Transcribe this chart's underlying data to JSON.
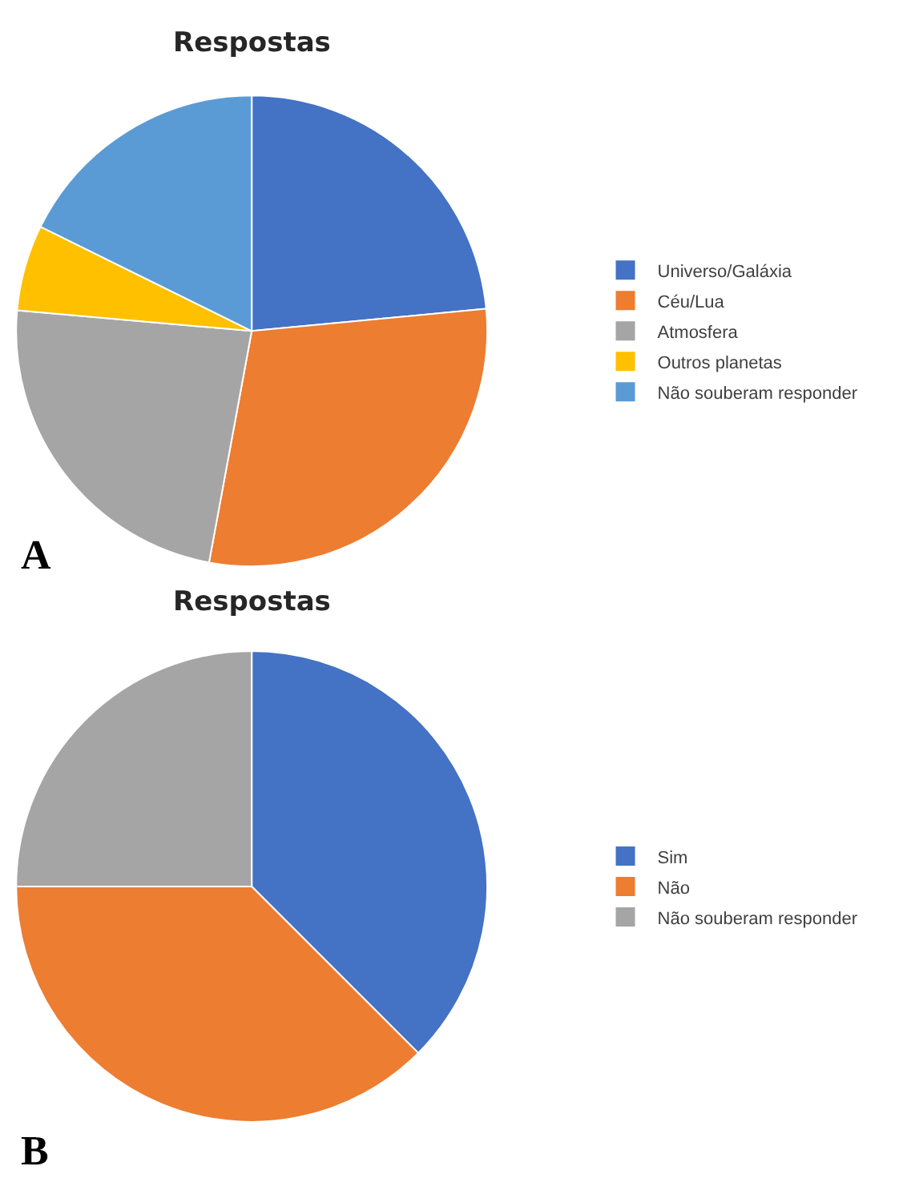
{
  "chart_data": [
    {
      "type": "pie",
      "title": "Respostas",
      "categories": [
        "Universo/Galáxia",
        "Céu/Lua",
        "Atmosfera",
        "Outros planetas",
        "Não souberam responder"
      ],
      "values": [
        23.5,
        29.4,
        23.5,
        5.9,
        17.7
      ],
      "colors": [
        "#4472c4",
        "#ed7d31",
        "#a5a5a5",
        "#ffc000",
        "#5b9bd5"
      ],
      "legend": "right",
      "annotations": [
        "A"
      ]
    },
    {
      "type": "pie",
      "title": "Respostas",
      "categories": [
        "Sim",
        "Não",
        "Não souberam responder"
      ],
      "values": [
        37.5,
        37.5,
        25
      ],
      "colors": [
        "#4472c4",
        "#ed7d31",
        "#a5a5a5"
      ],
      "legend": "right",
      "annotations": [
        "B"
      ]
    }
  ]
}
